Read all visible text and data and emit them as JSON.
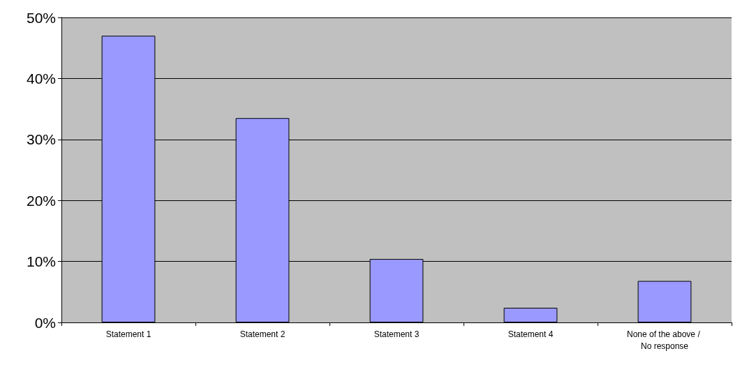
{
  "chart_data": {
    "type": "bar",
    "categories": [
      "Statement 1",
      "Statement 2",
      "Statement 3",
      "Statement 4",
      "None of the above / No response"
    ],
    "values": [
      47,
      33.5,
      10.4,
      2.4,
      6.8
    ],
    "color": "#9999ff",
    "ylim": [
      0,
      50
    ],
    "yticks": [
      {
        "value": 0,
        "label": "0%"
      },
      {
        "value": 10,
        "label": "10%"
      },
      {
        "value": 20,
        "label": "20%"
      },
      {
        "value": 30,
        "label": "30%"
      },
      {
        "value": 40,
        "label": "40%"
      },
      {
        "value": 50,
        "label": "50%"
      }
    ],
    "grid": "y"
  }
}
